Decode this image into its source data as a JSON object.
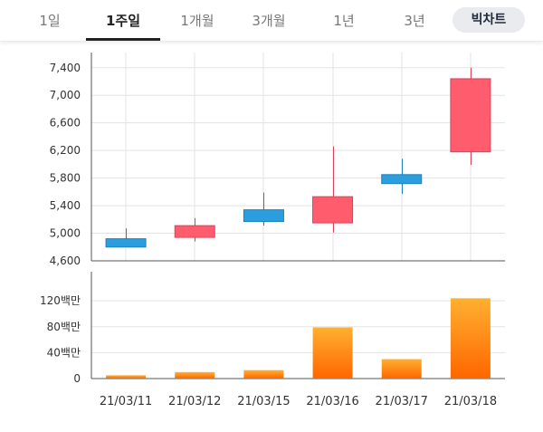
{
  "tabs": [
    {
      "id": "1d",
      "label": "1일"
    },
    {
      "id": "1w",
      "label": "1주일"
    },
    {
      "id": "1m",
      "label": "1개월"
    },
    {
      "id": "3m",
      "label": "3개월"
    },
    {
      "id": "1y",
      "label": "1년"
    },
    {
      "id": "3y",
      "label": "3년"
    }
  ],
  "active_tab": "1w",
  "big_chart_label": "빅차트",
  "colors": {
    "up": "#ff5c6e",
    "up_border": "#d8435a",
    "down": "#2b9fde",
    "down_border": "#1f7fb8",
    "volume_top": "#ffb030",
    "volume_bottom": "#ff6600",
    "grid": "#e3e3e3",
    "axis": "#555555"
  },
  "chart_data": [
    {
      "type": "candlestick",
      "categories": [
        "21/03/11",
        "21/03/12",
        "21/03/15",
        "21/03/16",
        "21/03/17",
        "21/03/18"
      ],
      "ohlc": [
        {
          "open": 4920,
          "high": 5070,
          "low": 4800,
          "close": 4800
        },
        {
          "open": 4940,
          "high": 5220,
          "low": 4880,
          "close": 5110
        },
        {
          "open": 5340,
          "high": 5590,
          "low": 5110,
          "close": 5170
        },
        {
          "open": 5150,
          "high": 6260,
          "low": 5010,
          "close": 5530
        },
        {
          "open": 5850,
          "high": 6080,
          "low": 5570,
          "close": 5720
        },
        {
          "open": 6180,
          "high": 7400,
          "low": 5990,
          "close": 7240
        }
      ],
      "yticks": [
        "7,400",
        "7,000",
        "6,600",
        "6,200",
        "5,800",
        "5,400",
        "5,000",
        "4,600"
      ],
      "ytick_values": [
        7400,
        7000,
        6600,
        6200,
        5800,
        5400,
        5000,
        4600
      ],
      "ylim": [
        4600,
        7620
      ],
      "grid": true
    },
    {
      "type": "bar",
      "categories": [
        "21/03/11",
        "21/03/12",
        "21/03/15",
        "21/03/16",
        "21/03/17",
        "21/03/18"
      ],
      "values": [
        5000000,
        10000000,
        13000000,
        79000000,
        30000000,
        124000000
      ],
      "yticks": [
        "120백만",
        "80백만",
        "40백만",
        "0"
      ],
      "ytick_values": [
        120000000,
        80000000,
        40000000,
        0
      ],
      "ylim": [
        0,
        165000000
      ],
      "grid": true
    }
  ]
}
